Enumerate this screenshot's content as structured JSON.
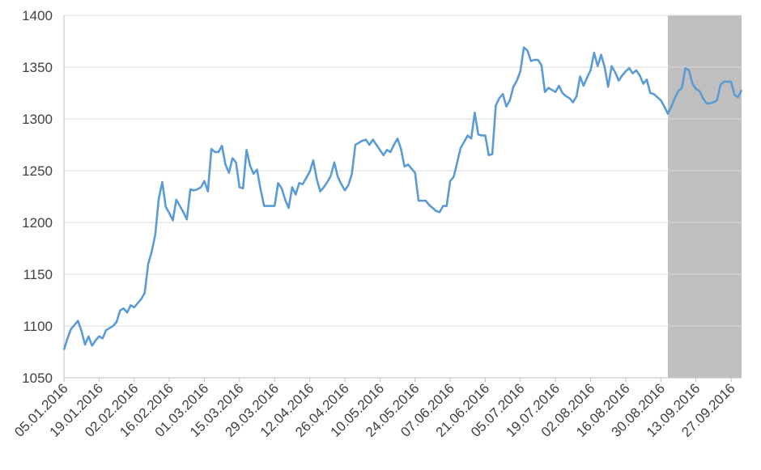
{
  "chart_data": {
    "type": "line",
    "categories": [
      "05.01.2016",
      null,
      null,
      null,
      null,
      null,
      null,
      null,
      null,
      null,
      "19.01.2016",
      null,
      null,
      null,
      null,
      null,
      null,
      null,
      null,
      null,
      "02.02.2016",
      null,
      null,
      null,
      null,
      null,
      null,
      null,
      null,
      null,
      "16.02.2016",
      null,
      null,
      null,
      null,
      null,
      null,
      null,
      null,
      null,
      "01.03.2016",
      null,
      null,
      null,
      null,
      null,
      null,
      null,
      null,
      null,
      "15.03.2016",
      null,
      null,
      null,
      null,
      null,
      null,
      null,
      null,
      null,
      "29.03.2016",
      null,
      null,
      null,
      null,
      null,
      null,
      null,
      null,
      null,
      "12.04.2016",
      null,
      null,
      null,
      null,
      null,
      null,
      null,
      null,
      null,
      "26.04.2016",
      null,
      null,
      null,
      null,
      null,
      null,
      null,
      null,
      null,
      "10.05.2016",
      null,
      null,
      null,
      null,
      null,
      null,
      null,
      null,
      null,
      "24.05.2016",
      null,
      null,
      null,
      null,
      null,
      null,
      null,
      null,
      null,
      "07.06.2016",
      null,
      null,
      null,
      null,
      null,
      null,
      null,
      null,
      null,
      "21.06.2016",
      null,
      null,
      null,
      null,
      null,
      null,
      null,
      null,
      null,
      "05.07.2016",
      null,
      null,
      null,
      null,
      null,
      null,
      null,
      null,
      null,
      "19.07.2016",
      null,
      null,
      null,
      null,
      null,
      null,
      null,
      null,
      null,
      "02.08.2016",
      null,
      null,
      null,
      null,
      null,
      null,
      null,
      null,
      null,
      "16.08.2016",
      null,
      null,
      null,
      null,
      null,
      null,
      null,
      null,
      null,
      "30.08.2016",
      null,
      null,
      null,
      null,
      null,
      null,
      null,
      null,
      null,
      "13.09.2016",
      null,
      null,
      null,
      null,
      null,
      null,
      null,
      null,
      null,
      "27.09.2016",
      null,
      null,
      null
    ],
    "values": [
      1077,
      1088,
      1097,
      1101,
      1105,
      1095,
      1082,
      1090,
      1081,
      1086,
      1090,
      1088,
      1096,
      1098,
      1100,
      1104,
      1115,
      1117,
      1113,
      1120,
      1118,
      1122,
      1126,
      1132,
      1160,
      1172,
      1188,
      1223,
      1239,
      1215,
      1209,
      1202,
      1222,
      1216,
      1210,
      1203,
      1232,
      1231,
      1232,
      1234,
      1240,
      1230,
      1271,
      1268,
      1268,
      1274,
      1256,
      1248,
      1262,
      1258,
      1234,
      1233,
      1270,
      1255,
      1247,
      1251,
      1232,
      1216,
      1216,
      1216,
      1216,
      1238,
      1233,
      1222,
      1214,
      1234,
      1227,
      1238,
      1237,
      1243,
      1249,
      1260,
      1242,
      1230,
      1234,
      1239,
      1245,
      1258,
      1244,
      1237,
      1231,
      1236,
      1247,
      1275,
      1277,
      1279,
      1280,
      1275,
      1280,
      1275,
      1270,
      1265,
      1270,
      1268,
      1275,
      1281,
      1271,
      1254,
      1256,
      1252,
      1248,
      1221,
      1221,
      1221,
      1217,
      1214,
      1211,
      1210,
      1216,
      1216,
      1240,
      1244,
      1258,
      1272,
      1278,
      1284,
      1281,
      1306,
      1285,
      1284,
      1284,
      1265,
      1266,
      1313,
      1320,
      1324,
      1312,
      1318,
      1331,
      1337,
      1346,
      1369,
      1366,
      1356,
      1357,
      1357,
      1352,
      1326,
      1330,
      1328,
      1326,
      1332,
      1325,
      1322,
      1320,
      1316,
      1322,
      1341,
      1332,
      1340,
      1347,
      1364,
      1351,
      1362,
      1350,
      1331,
      1351,
      1345,
      1337,
      1342,
      1346,
      1349,
      1344,
      1347,
      1342,
      1334,
      1338,
      1325,
      1324,
      1321,
      1318,
      1312,
      1305,
      1312,
      1320,
      1327,
      1330,
      1349,
      1347,
      1334,
      1329,
      1327,
      1320,
      1315,
      1315,
      1316,
      1318,
      1333,
      1336,
      1336,
      1336,
      1323,
      1321,
      1328
    ],
    "color": "#5b9bd5",
    "ylim": [
      1050,
      1400
    ],
    "yticks": [
      1050,
      1100,
      1150,
      1200,
      1250,
      1300,
      1350,
      1400
    ],
    "grid": true,
    "shaded_region": {
      "start": 172,
      "color": "#bfbfbf"
    }
  }
}
